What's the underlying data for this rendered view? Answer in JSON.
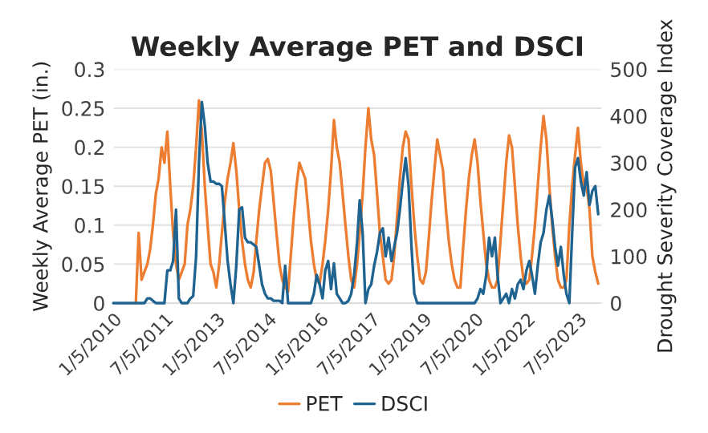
{
  "chart_data": {
    "type": "line",
    "title": "Weekly Average PET and DSCI",
    "ylabel": "Weekly Average PET (in.)",
    "y2label": "Drought Severity Coverage Index",
    "x": [
      "2010-01-05",
      "2010-02",
      "2010-03",
      "2010-04",
      "2010-05",
      "2010-06",
      "2010-07",
      "2010-08",
      "2010-09",
      "2010-10",
      "2010-11",
      "2010-12",
      "2011-01",
      "2011-02",
      "2011-03",
      "2011-04",
      "2011-05",
      "2011-06",
      "2011-07",
      "2011-08",
      "2011-09",
      "2011-10",
      "2011-11",
      "2011-12",
      "2012-01",
      "2012-02",
      "2012-03",
      "2012-04",
      "2012-05",
      "2012-06",
      "2012-07",
      "2012-08",
      "2012-09",
      "2012-10",
      "2012-11",
      "2012-12",
      "2013-01",
      "2013-02",
      "2013-03",
      "2013-04",
      "2013-05",
      "2013-06",
      "2013-07",
      "2013-08",
      "2013-09",
      "2013-10",
      "2013-11",
      "2013-12",
      "2014-01",
      "2014-02",
      "2014-03",
      "2014-04",
      "2014-05",
      "2014-06",
      "2014-07",
      "2014-08",
      "2014-09",
      "2014-10",
      "2014-11",
      "2014-12",
      "2015-01",
      "2015-02",
      "2015-03",
      "2015-04",
      "2015-05",
      "2015-06",
      "2015-07",
      "2015-08",
      "2015-09",
      "2015-10",
      "2015-11",
      "2015-12",
      "2016-01",
      "2016-02",
      "2016-03",
      "2016-04",
      "2016-05",
      "2016-06",
      "2016-07",
      "2016-08",
      "2016-09",
      "2016-10",
      "2016-11",
      "2016-12",
      "2017-01",
      "2017-02",
      "2017-03",
      "2017-04",
      "2017-05",
      "2017-06",
      "2017-07",
      "2017-08",
      "2017-09",
      "2017-10",
      "2017-11",
      "2017-12",
      "2018-01",
      "2018-02",
      "2018-03",
      "2018-04",
      "2018-05",
      "2018-06",
      "2018-07",
      "2018-08",
      "2018-09",
      "2018-10",
      "2018-11",
      "2018-12",
      "2019-01",
      "2019-02",
      "2019-03",
      "2019-04",
      "2019-05",
      "2019-06",
      "2019-07",
      "2019-08",
      "2019-09",
      "2019-10",
      "2019-11",
      "2019-12",
      "2020-01",
      "2020-02",
      "2020-03",
      "2020-04",
      "2020-05",
      "2020-06",
      "2020-07",
      "2020-08",
      "2020-09",
      "2020-10",
      "2020-11",
      "2020-12",
      "2021-01",
      "2021-02",
      "2021-03",
      "2021-04",
      "2021-05",
      "2021-06",
      "2021-07",
      "2021-08",
      "2021-09",
      "2021-10",
      "2021-11",
      "2021-12",
      "2022-01",
      "2022-02",
      "2022-03",
      "2022-04",
      "2022-05",
      "2022-06",
      "2022-07",
      "2022-08",
      "2022-09",
      "2022-10",
      "2022-11",
      "2022-12",
      "2023-01",
      "2023-02",
      "2023-03",
      "2023-04",
      "2023-05",
      "2023-06",
      "2023-07",
      "2023-08",
      "2023-09",
      "2023-10",
      "2023-11",
      "2023-12",
      "2024-01",
      "2024-02"
    ],
    "series": [
      {
        "name": "PET",
        "color": "#ed7d31",
        "values": [
          null,
          null,
          null,
          null,
          null,
          null,
          null,
          null,
          0,
          0.09,
          0.03,
          0.04,
          0.05,
          0.07,
          0.1,
          0.14,
          0.16,
          0.2,
          0.18,
          0.22,
          0.15,
          0.09,
          0.05,
          0.03,
          0.04,
          0.05,
          0.1,
          0.12,
          0.15,
          0.2,
          0.26,
          0.22,
          0.15,
          0.1,
          0.05,
          0.04,
          0.02,
          0.05,
          0.09,
          0.13,
          0.16,
          0.18,
          0.205,
          0.17,
          0.12,
          0.08,
          0.05,
          0.03,
          0.02,
          0.04,
          0.08,
          0.12,
          0.15,
          0.18,
          0.185,
          0.17,
          0.13,
          0.09,
          0.05,
          0.03,
          0.02,
          0.015,
          0.06,
          0.11,
          0.15,
          0.18,
          0.17,
          0.16,
          0.12,
          0.08,
          0.05,
          0.03,
          0.025,
          0.05,
          0.08,
          0.12,
          0.17,
          0.235,
          0.2,
          0.18,
          0.14,
          0.1,
          0.06,
          0.03,
          0.02,
          0.05,
          0.09,
          0.14,
          0.2,
          0.25,
          0.21,
          0.19,
          0.14,
          0.09,
          0.06,
          0.03,
          0.025,
          0.03,
          0.06,
          0.11,
          0.16,
          0.2,
          0.22,
          0.21,
          0.15,
          0.1,
          0.06,
          0.03,
          0.025,
          0.04,
          0.08,
          0.13,
          0.17,
          0.21,
          0.19,
          0.17,
          0.12,
          0.08,
          0.05,
          0.03,
          0.02,
          0.02,
          0.07,
          0.12,
          0.16,
          0.19,
          0.21,
          0.18,
          0.13,
          0.09,
          0.05,
          0.03,
          0.02,
          0.02,
          0.03,
          0.08,
          0.13,
          0.18,
          0.215,
          0.2,
          0.15,
          0.1,
          0.06,
          0.03,
          0.025,
          0.03,
          0.06,
          0.1,
          0.15,
          0.2,
          0.24,
          0.21,
          0.15,
          0.1,
          0.06,
          0.03,
          0.02,
          0.02,
          0.03,
          0.1,
          0.15,
          0.19,
          0.225,
          0.18,
          0.15,
          0.15,
          0.12,
          0.06,
          0.04,
          0.025
        ]
      },
      {
        "name": "DSCI",
        "color": "#1f6391",
        "axis": "y2",
        "values": [
          0,
          0,
          0,
          0,
          0,
          0,
          0,
          0,
          0,
          0,
          0,
          0,
          10,
          10,
          5,
          0,
          0,
          0,
          0,
          70,
          70,
          90,
          200,
          10,
          0,
          0,
          0,
          10,
          15,
          100,
          300,
          430,
          380,
          300,
          260,
          260,
          255,
          255,
          250,
          170,
          90,
          40,
          0,
          80,
          200,
          205,
          140,
          130,
          130,
          125,
          120,
          80,
          40,
          20,
          10,
          10,
          5,
          5,
          5,
          0,
          80,
          0,
          0,
          0,
          0,
          0,
          0,
          0,
          0,
          0,
          20,
          60,
          40,
          10,
          70,
          90,
          30,
          85,
          20,
          10,
          0,
          0,
          5,
          20,
          60,
          130,
          220,
          150,
          0,
          30,
          40,
          80,
          110,
          150,
          160,
          100,
          140,
          90,
          120,
          150,
          200,
          260,
          310,
          250,
          120,
          20,
          0,
          0,
          0,
          0,
          0,
          0,
          0,
          0,
          0,
          0,
          0,
          0,
          0,
          0,
          0,
          0,
          0,
          0,
          0,
          0,
          0,
          10,
          30,
          20,
          60,
          140,
          100,
          140,
          60,
          0,
          10,
          20,
          0,
          30,
          10,
          40,
          50,
          30,
          70,
          90,
          60,
          20,
          80,
          130,
          150,
          200,
          230,
          180,
          120,
          80,
          120,
          60,
          20,
          0,
          150,
          290,
          310,
          260,
          230,
          280,
          210,
          240,
          250,
          190
        ]
      }
    ],
    "xlim": [
      "2010-01-05",
      "2024-03-10"
    ],
    "xticks": [
      {
        "value": "2010-01-05",
        "label": "1/5/2010"
      },
      {
        "value": "2011-07-05",
        "label": "7/5/2011"
      },
      {
        "value": "2013-01-05",
        "label": "1/5/2013"
      },
      {
        "value": "2014-07-05",
        "label": "7/5/2014"
      },
      {
        "value": "2016-01-05",
        "label": "1/5/2016"
      },
      {
        "value": "2017-07-05",
        "label": "7/5/2017"
      },
      {
        "value": "2019-01-05",
        "label": "1/5/2019"
      },
      {
        "value": "2020-07-05",
        "label": "7/5/2020"
      },
      {
        "value": "2022-01-05",
        "label": "1/5/2022"
      },
      {
        "value": "2023-07-05",
        "label": "7/5/2023"
      }
    ],
    "ylim": [
      0,
      0.3
    ],
    "yticks": [
      0,
      0.05,
      0.1,
      0.15,
      0.2,
      0.25,
      0.3
    ],
    "y2lim": [
      0,
      500
    ],
    "y2ticks": [
      0,
      100,
      200,
      300,
      400,
      500
    ],
    "grid": "y",
    "legend": "bottom",
    "marker": "none",
    "line_style": "solid"
  }
}
